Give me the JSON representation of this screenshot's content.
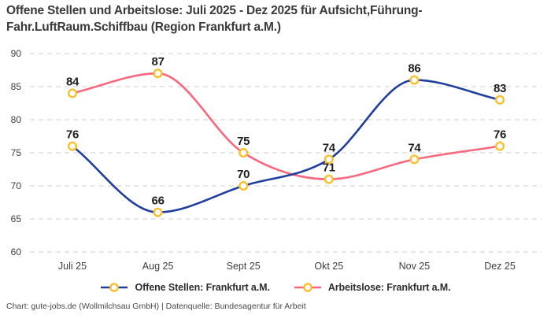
{
  "title": {
    "line1": "Offene Stellen und Arbeitslose: Juli 2025 - Dez 2025 für Aufsicht,Führung-",
    "line2": "Fahr.LuftRaum.Schiffbau (Region Frankfurt a.M.)"
  },
  "footer": "Chart: gute-jobs.de (Wollmilchsau GmbH) | Datenquelle: Bundesagentur für Arbeit",
  "chart_data": {
    "type": "line",
    "categories": [
      "Juli 25",
      "Aug 25",
      "Sept 25",
      "Okt 25",
      "Nov 25",
      "Dez 25"
    ],
    "series": [
      {
        "name": "Offene Stellen: Frankfurt a.M.",
        "color": "#203f9e",
        "values": [
          76,
          66,
          70,
          74,
          86,
          83
        ]
      },
      {
        "name": "Arbeitslose: Frankfurt a.M.",
        "color": "#f9677f",
        "values": [
          84,
          87,
          75,
          71,
          74,
          76
        ]
      }
    ],
    "yticks": [
      90,
      85,
      80,
      75,
      70,
      65,
      60
    ],
    "ylim": [
      60,
      90
    ],
    "grid": "horizontal-dashed",
    "legend_position": "bottom-center",
    "data_labels": true,
    "curve": "smooth-monotone",
    "marker": {
      "shape": "circle",
      "stroke": "#fcbf2c",
      "fill": "#ffffff"
    },
    "colors": {
      "grid": "#cccccc",
      "axis_text": "#3d3d3d",
      "label_text": "#1e1e1e"
    }
  }
}
